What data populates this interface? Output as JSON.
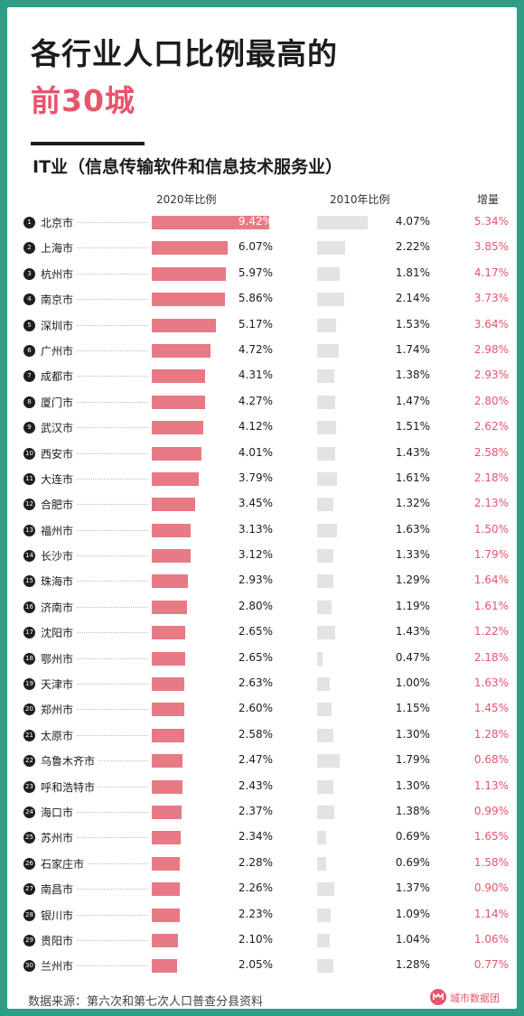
{
  "title_line1": "各行业人口比例最高的",
  "title_line2": "前30城",
  "subtitle": "IT业（信息传输软件和信息技术服务业）",
  "headers": {
    "col2020": "2020年比例",
    "col2010": "2010年比例",
    "colInc": "增量"
  },
  "footer": {
    "source": "数据来源：第六次和第七次人口普查分县资料",
    "brand": "城市数据团"
  },
  "colors": {
    "bar2020": "#e87a85",
    "bar2010": "#e3e3e3",
    "accent": "#e8546b",
    "frame": "#2e9e86"
  },
  "chart_data": {
    "type": "bar",
    "title": "各行业人口比例最高的前30城",
    "subtitle": "IT业（信息传输软件和信息技术服务业）",
    "categories": [
      "北京市",
      "上海市",
      "杭州市",
      "南京市",
      "深圳市",
      "广州市",
      "成都市",
      "厦门市",
      "武汉市",
      "西安市",
      "大连市",
      "合肥市",
      "福州市",
      "长沙市",
      "珠海市",
      "济南市",
      "沈阳市",
      "鄂州市",
      "天津市",
      "郑州市",
      "太原市",
      "乌鲁木齐市",
      "呼和浩特市",
      "海口市",
      "苏州市",
      "石家庄市",
      "南昌市",
      "银川市",
      "贵阳市",
      "兰州市"
    ],
    "ranks": [
      "1",
      "2",
      "3",
      "4",
      "5",
      "6",
      "7",
      "8",
      "9",
      "10",
      "11",
      "12",
      "13",
      "14",
      "15",
      "16",
      "17",
      "18",
      "19",
      "20",
      "21",
      "22",
      "23",
      "24",
      "25",
      "26",
      "27",
      "28",
      "29",
      "30"
    ],
    "series": [
      {
        "name": "2020年比例",
        "values": [
          9.42,
          6.07,
          5.97,
          5.86,
          5.17,
          4.72,
          4.31,
          4.27,
          4.12,
          4.01,
          3.79,
          3.45,
          3.13,
          3.12,
          2.93,
          2.8,
          2.65,
          2.65,
          2.63,
          2.6,
          2.58,
          2.47,
          2.43,
          2.37,
          2.34,
          2.28,
          2.26,
          2.23,
          2.1,
          2.05
        ]
      },
      {
        "name": "2010年比例",
        "values": [
          4.07,
          2.22,
          1.81,
          2.14,
          1.53,
          1.74,
          1.38,
          1.47,
          1.51,
          1.43,
          1.61,
          1.32,
          1.63,
          1.33,
          1.29,
          1.19,
          1.43,
          0.47,
          1.0,
          1.15,
          1.3,
          1.79,
          1.3,
          1.38,
          0.69,
          0.69,
          1.37,
          1.09,
          1.04,
          1.28
        ]
      },
      {
        "name": "增量",
        "values": [
          5.34,
          3.85,
          4.17,
          3.73,
          3.64,
          2.98,
          2.93,
          2.8,
          2.62,
          2.58,
          2.18,
          2.13,
          1.5,
          1.79,
          1.64,
          1.61,
          1.22,
          2.18,
          1.63,
          1.45,
          1.28,
          0.68,
          1.13,
          0.99,
          1.65,
          1.58,
          0.9,
          1.14,
          1.06,
          0.77
        ]
      }
    ],
    "labels2020": [
      "9.42%",
      "6.07%",
      "5.97%",
      "5.86%",
      "5.17%",
      "4.72%",
      "4.31%",
      "4.27%",
      "4.12%",
      "4.01%",
      "3.79%",
      "3.45%",
      "3.13%",
      "3.12%",
      "2.93%",
      "2.80%",
      "2.65%",
      "2.65%",
      "2.63%",
      "2.60%",
      "2.58%",
      "2.47%",
      "2.43%",
      "2.37%",
      "2.34%",
      "2.28%",
      "2.26%",
      "2.23%",
      "2.10%",
      "2.05%"
    ],
    "labels2010": [
      "4.07%",
      "2.22%",
      "1.81%",
      "2.14%",
      "1.53%",
      "1.74%",
      "1.38%",
      "1.47%",
      "1.51%",
      "1.43%",
      "1.61%",
      "1.32%",
      "1.63%",
      "1.33%",
      "1.29%",
      "1.19%",
      "1.43%",
      "0.47%",
      "1.00%",
      "1.15%",
      "1.30%",
      "1.79%",
      "1.30%",
      "1.38%",
      "0.69%",
      "0.69%",
      "1.37%",
      "1.09%",
      "1.04%",
      "1.28%"
    ],
    "labelsInc": [
      "5.34%",
      "3.85%",
      "4.17%",
      "3.73%",
      "3.64%",
      "2.98%",
      "2.93%",
      "2.80%",
      "2.62%",
      "2.58%",
      "2.18%",
      "2.13%",
      "1.50%",
      "1.79%",
      "1.64%",
      "1.61%",
      "1.22%",
      "2.18%",
      "1.63%",
      "1.45%",
      "1.28%",
      "0.68%",
      "1.13%",
      "0.99%",
      "1.65%",
      "1.58%",
      "0.90%",
      "1.14%",
      "1.06%",
      "0.77%"
    ],
    "unit": "%",
    "grid": false,
    "legend": "none"
  }
}
